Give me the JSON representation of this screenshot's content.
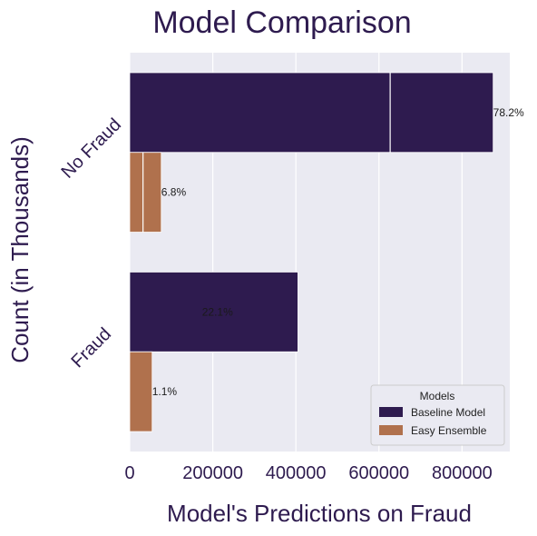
{
  "chart_data": {
    "type": "bar",
    "orientation": "horizontal",
    "title": "Model Comparison",
    "xlabel": "Model's Predictions on Fraud",
    "ylabel": "Count (in Thousands)",
    "categories": [
      "No Fraud",
      "Fraud"
    ],
    "series": [
      {
        "name": "Baseline Model",
        "values": [
          875000,
          405000
        ],
        "labels": [
          "78.2%",
          "22.1%"
        ],
        "color": "#2e1b4f"
      },
      {
        "name": "Easy Ensemble",
        "values": [
          76000,
          54000
        ],
        "labels": [
          "6.8%",
          "1.1%"
        ],
        "color": "#b0714d"
      }
    ],
    "xlim": [
      0,
      915000
    ],
    "xticks": [
      0,
      200000,
      400000,
      600000,
      800000
    ],
    "xtick_labels": [
      "0",
      "200000",
      "400000",
      "600000",
      "800000"
    ],
    "grid": true,
    "legend": {
      "title": "Models",
      "position": "lower-right"
    },
    "colors": {
      "text": "#2e1b4f",
      "background": "#eaeaf2",
      "grid": "#ffffff"
    }
  }
}
